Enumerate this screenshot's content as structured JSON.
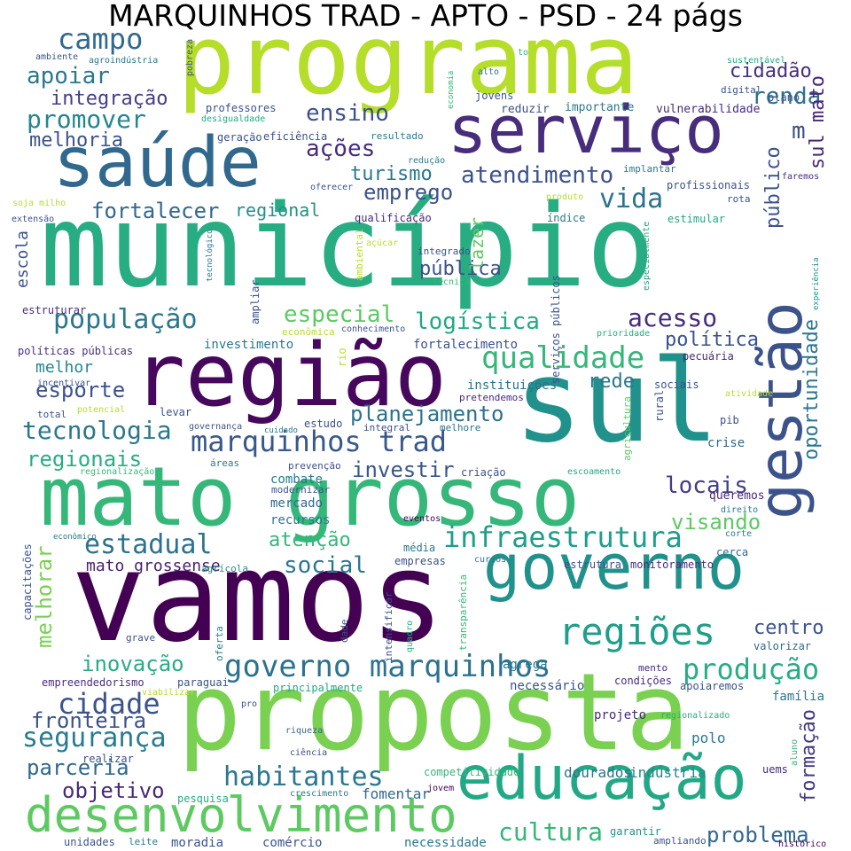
{
  "title": "MARQUINHOS TRAD - APTO - PSD - 24 págs",
  "colors": {
    "background": "#ffffff",
    "title": "#000000"
  },
  "words": [
    {
      "text": "município",
      "color": "#27ad81"
    },
    {
      "text": "programa",
      "color": "#b5de2b"
    },
    {
      "text": "proposta",
      "color": "#7ad151"
    },
    {
      "text": "vamos",
      "color": "#440154"
    },
    {
      "text": "sul",
      "color": "#21918c"
    },
    {
      "text": "região",
      "color": "#46085c"
    },
    {
      "text": "mato grosso",
      "color": "#35b779"
    },
    {
      "text": "serviço",
      "color": "#472d7b"
    },
    {
      "text": "saúde",
      "color": "#31688e"
    },
    {
      "text": "governo",
      "color": "#21918c"
    },
    {
      "text": "gestão",
      "color": "#3b528b"
    },
    {
      "text": "educação",
      "color": "#22a884"
    },
    {
      "text": "desenvolvimento",
      "color": "#5ec962"
    },
    {
      "text": "infraestrutura",
      "color": "#1f9e89"
    },
    {
      "text": "regiões",
      "color": "#1f9e89"
    },
    {
      "text": "governo marquinhos",
      "color": "#2c728e"
    },
    {
      "text": "marquinhos trad",
      "color": "#38588c"
    },
    {
      "text": "qualidade",
      "color": "#35b779"
    },
    {
      "text": "população",
      "color": "#2a788e"
    },
    {
      "text": "tecnologia",
      "color": "#2a788e"
    },
    {
      "text": "produção",
      "color": "#27ad81"
    },
    {
      "text": "campo",
      "color": "#31688e"
    },
    {
      "text": "cidade",
      "color": "#3b528b"
    },
    {
      "text": "segurança",
      "color": "#287c8e"
    },
    {
      "text": "habitantes",
      "color": "#2a788e"
    },
    {
      "text": "cultura",
      "color": "#35b779"
    },
    {
      "text": "estadual",
      "color": "#2c728e"
    },
    {
      "text": "apoiar",
      "color": "#2a788e"
    },
    {
      "text": "promover",
      "color": "#25858e"
    },
    {
      "text": "renda",
      "color": "#2c728e"
    },
    {
      "text": "ações",
      "color": "#472d7b"
    },
    {
      "text": "ensino",
      "color": "#3b528b"
    },
    {
      "text": "vida",
      "color": "#2c728e"
    },
    {
      "text": "atendimento",
      "color": "#3b528b"
    },
    {
      "text": "emprego",
      "color": "#3b528b"
    },
    {
      "text": "turismo",
      "color": "#2a788e"
    },
    {
      "text": "fortalecer",
      "color": "#31688e"
    },
    {
      "text": "logística",
      "color": "#22a884"
    },
    {
      "text": "especial",
      "color": "#5ec962"
    },
    {
      "text": "acesso",
      "color": "#472d7b"
    },
    {
      "text": "planejamento",
      "color": "#2c728e"
    },
    {
      "text": "regionais",
      "color": "#27ad81"
    },
    {
      "text": "investir",
      "color": "#38588c"
    },
    {
      "text": "locais",
      "color": "#433e85"
    },
    {
      "text": "visando",
      "color": "#5ec962"
    },
    {
      "text": "social",
      "color": "#2a788e"
    },
    {
      "text": "inovação",
      "color": "#27ad81"
    },
    {
      "text": "parceria",
      "color": "#31688e"
    },
    {
      "text": "objetivo",
      "color": "#482878"
    },
    {
      "text": "fronteira",
      "color": "#3b528b"
    },
    {
      "text": "problema",
      "color": "#31688e"
    },
    {
      "text": "esporte",
      "color": "#3b528b"
    },
    {
      "text": "melhoria",
      "color": "#3b528b"
    },
    {
      "text": "integração",
      "color": "#433e85"
    },
    {
      "text": "oportunidade",
      "color": "#2a788e"
    },
    {
      "text": "público",
      "color": "#3b528b"
    },
    {
      "text": "sul mato",
      "color": "#482878"
    },
    {
      "text": "melhorar",
      "color": "#7ad151"
    },
    {
      "text": "formação",
      "color": "#443a83"
    },
    {
      "text": "cidadão",
      "color": "#472d7b"
    },
    {
      "text": "pública",
      "color": "#3b528b"
    },
    {
      "text": "rede",
      "color": "#2a788e"
    },
    {
      "text": "política",
      "color": "#3b528b"
    },
    {
      "text": "centro",
      "color": "#3b528b"
    },
    {
      "text": "atenção",
      "color": "#35b779"
    },
    {
      "text": "regional",
      "color": "#21918c"
    },
    {
      "text": "escola",
      "color": "#3b528b"
    },
    {
      "text": "lazer",
      "color": "#5ec962"
    },
    {
      "text": "melhor",
      "color": "#25858e"
    },
    {
      "text": "mato grossense",
      "color": "#481f70"
    },
    {
      "text": "fomentar",
      "color": "#31688e"
    },
    {
      "text": "dourados",
      "color": "#2c728e"
    },
    {
      "text": "indústria",
      "color": "#25858e"
    },
    {
      "text": "polo",
      "color": "#2a788e"
    },
    {
      "text": "família",
      "color": "#2a788e"
    },
    {
      "text": "valorizar",
      "color": "#31688e"
    },
    {
      "text": "projeto",
      "color": "#482878"
    },
    {
      "text": "queremos",
      "color": "#482878"
    },
    {
      "text": "cerca",
      "color": "#31688e"
    },
    {
      "text": "crise",
      "color": "#31688e"
    },
    {
      "text": "rural",
      "color": "#3b528b"
    },
    {
      "text": "agrega",
      "color": "#2a788e"
    },
    {
      "text": "necessário",
      "color": "#3b528b"
    },
    {
      "text": "condições",
      "color": "#472d7b"
    },
    {
      "text": "apoiaremos",
      "color": "#3b528b"
    },
    {
      "text": "comércio",
      "color": "#3b528b"
    },
    {
      "text": "moradia",
      "color": "#3b528b"
    },
    {
      "text": "leite",
      "color": "#2a788e"
    },
    {
      "text": "unidades",
      "color": "#3b528b"
    },
    {
      "text": "necessidade",
      "color": "#2a788e"
    },
    {
      "text": "garantir",
      "color": "#21918c"
    },
    {
      "text": "ampliando",
      "color": "#3b528b"
    },
    {
      "text": "histórico",
      "color": "#440154"
    },
    {
      "text": "pesquisa",
      "color": "#27ad81"
    },
    {
      "text": "crescimento",
      "color": "#2a788e"
    },
    {
      "text": "jovem",
      "color": "#440154"
    },
    {
      "text": "competitividade",
      "color": "#35b779"
    },
    {
      "text": "realizar",
      "color": "#3b528b"
    },
    {
      "text": "ciência",
      "color": "#3b528b"
    },
    {
      "text": "riqueza",
      "color": "#31688e"
    },
    {
      "text": "pro",
      "color": "#3b528b"
    },
    {
      "text": "regionalizado",
      "color": "#27ad81"
    },
    {
      "text": "uems",
      "color": "#472d7b"
    },
    {
      "text": "aluno",
      "color": "#35b779"
    },
    {
      "text": "empreendedorismo",
      "color": "#472d7b"
    },
    {
      "text": "paraguai",
      "color": "#3b528b"
    },
    {
      "text": "viabilizar",
      "color": "#b5de2b"
    },
    {
      "text": "principalmente",
      "color": "#22a884"
    },
    {
      "text": "mento",
      "color": "#482878"
    },
    {
      "text": "grave",
      "color": "#3b528b"
    },
    {
      "text": "oferta",
      "color": "#2a788e"
    },
    {
      "text": "dade",
      "color": "#3b528b"
    },
    {
      "text": "intensificar",
      "color": "#3b528b"
    },
    {
      "text": "quadro",
      "color": "#27ad81"
    },
    {
      "text": "transparência",
      "color": "#35b779"
    },
    {
      "text": "capacitações",
      "color": "#3b528b"
    },
    {
      "text": "econômico",
      "color": "#2a788e"
    },
    {
      "text": "agrícola",
      "color": "#21918c"
    },
    {
      "text": "empresas",
      "color": "#3b528b"
    },
    {
      "text": "cursos",
      "color": "#2a788e"
    },
    {
      "text": "média",
      "color": "#2a788e"
    },
    {
      "text": "estrutura",
      "color": "#3b528b"
    },
    {
      "text": "monitoramento",
      "color": "#472d7b"
    },
    {
      "text": "corte",
      "color": "#2a788e"
    },
    {
      "text": "direito",
      "color": "#2a788e"
    },
    {
      "text": "eventos",
      "color": "#440154"
    },
    {
      "text": "recursos",
      "color": "#2a788e"
    },
    {
      "text": "mercado",
      "color": "#31688e"
    },
    {
      "text": "modernizar",
      "color": "#3b528b"
    },
    {
      "text": "combate",
      "color": "#2a788e"
    },
    {
      "text": "criação",
      "color": "#3b528b"
    },
    {
      "text": "escoamento",
      "color": "#22a884"
    },
    {
      "text": "regionalização",
      "color": "#35b779"
    },
    {
      "text": "áreas",
      "color": "#2a788e"
    },
    {
      "text": "prevenção",
      "color": "#3b528b"
    },
    {
      "text": "estudo",
      "color": "#3b528b"
    },
    {
      "text": "governança",
      "color": "#3b528b"
    },
    {
      "text": "cuidado",
      "color": "#2a788e"
    },
    {
      "text": "integral",
      "color": "#3b528b"
    },
    {
      "text": "melhore",
      "color": "#2a788e"
    },
    {
      "text": "pretendemos",
      "color": "#482878"
    },
    {
      "text": "instituições",
      "color": "#2c728e"
    },
    {
      "text": "total",
      "color": "#3b528b"
    },
    {
      "text": "potencial",
      "color": "#b5de2b"
    },
    {
      "text": "levar",
      "color": "#3b528b"
    },
    {
      "text": "incentivar",
      "color": "#3b528b"
    },
    {
      "text": "políticas públicas",
      "color": "#472d7b"
    },
    {
      "text": "investimento",
      "color": "#2a788e"
    },
    {
      "text": "econômica",
      "color": "#b5de2b"
    },
    {
      "text": "conhecimento",
      "color": "#3b528b"
    },
    {
      "text": "fortalecimento",
      "color": "#3b528b"
    },
    {
      "text": "estruturar",
      "color": "#472d7b"
    },
    {
      "text": "ampliar",
      "color": "#3b528b"
    },
    {
      "text": "rio",
      "color": "#b5de2b"
    },
    {
      "text": "prioridade",
      "color": "#27ad81"
    },
    {
      "text": "pecuária",
      "color": "#482878"
    },
    {
      "text": "sociais",
      "color": "#3b528b"
    },
    {
      "text": "atividade",
      "color": "#b5de2b"
    },
    {
      "text": "pib",
      "color": "#3b528b"
    },
    {
      "text": "agricultura",
      "color": "#5ec962"
    },
    {
      "text": "serviços públicos",
      "color": "#3b528b"
    },
    {
      "text": "especialmente",
      "color": "#22a884"
    },
    {
      "text": "experiência",
      "color": "#21918c"
    },
    {
      "text": "tecnológico",
      "color": "#2a788e"
    },
    {
      "text": "ambiental",
      "color": "#b5de2b"
    },
    {
      "text": "açúcar",
      "color": "#b5de2b"
    },
    {
      "text": "integrado",
      "color": "#3b528b"
    },
    {
      "text": "técnica",
      "color": "#35b779"
    },
    {
      "text": "soja milho",
      "color": "#b5de2b"
    },
    {
      "text": "extensão",
      "color": "#3b528b"
    },
    {
      "text": "qualificação",
      "color": "#482878"
    },
    {
      "text": "índice",
      "color": "#2a788e"
    },
    {
      "text": "estimular",
      "color": "#22a884"
    },
    {
      "text": "produto",
      "color": "#b5de2b"
    },
    {
      "text": "rota",
      "color": "#3b528b"
    },
    {
      "text": "profissionais",
      "color": "#3b528b"
    },
    {
      "text": "oferecer",
      "color": "#3b528b"
    },
    {
      "text": "implantar",
      "color": "#2a788e"
    },
    {
      "text": "faremos",
      "color": "#472d7b"
    },
    {
      "text": "redução",
      "color": "#2a788e"
    },
    {
      "text": "resultado",
      "color": "#2a788e"
    },
    {
      "text": "geração",
      "color": "#3b528b"
    },
    {
      "text": "eficiência",
      "color": "#3b528b"
    },
    {
      "text": "desigualdade",
      "color": "#22a884"
    },
    {
      "text": "professores",
      "color": "#3b528b"
    },
    {
      "text": "reduzir",
      "color": "#3b528b"
    },
    {
      "text": "importante",
      "color": "#2a788e"
    },
    {
      "text": "vulnerabilidade",
      "color": "#472d7b"
    },
    {
      "text": "plano",
      "color": "#3b528b"
    },
    {
      "text": "digital",
      "color": "#3b528b"
    },
    {
      "text": "jovens",
      "color": "#3b528b"
    },
    {
      "text": "sustentável",
      "color": "#27ad81"
    },
    {
      "text": "alto",
      "color": "#2a788e"
    },
    {
      "text": "economia",
      "color": "#35b779"
    },
    {
      "text": "to",
      "color": "#35b779"
    },
    {
      "text": "pobreza",
      "color": "#3b528b"
    },
    {
      "text": "agroindústria",
      "color": "#2a788e"
    },
    {
      "text": "ambiente",
      "color": "#3b528b"
    },
    {
      "text": "m",
      "color": "#3b528b"
    }
  ]
}
